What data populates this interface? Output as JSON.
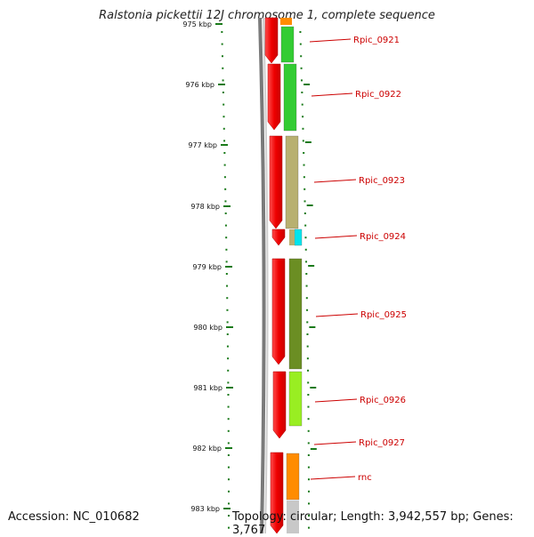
{
  "title": "Ralstonia pickettii 12J chromosome 1, complete sequence",
  "footer": {
    "accession": "Accession: NC_010682",
    "topology": "Topology: circular; Length: 3,942,557 bp; Genes: 3,767"
  },
  "ticks": [
    "975 kbp",
    "976 kbp",
    "977 kbp",
    "978 kbp",
    "979 kbp",
    "980 kbp",
    "981 kbp",
    "982 kbp",
    "983 kbp"
  ],
  "genes": [
    {
      "name": "Rpic_0921",
      "cds_color": "#33cc33"
    },
    {
      "name": "Rpic_0922",
      "cds_color": "#33cc33"
    },
    {
      "name": "Rpic_0923",
      "cds_color": "#b8b070"
    },
    {
      "name": "Rpic_0924",
      "cds_color": "#00e5ee"
    },
    {
      "name": "Rpic_0925",
      "cds_color": "#6b8e23"
    },
    {
      "name": "Rpic_0926",
      "cds_color": "#99ee22"
    },
    {
      "name": "Rpic_0927",
      "cds_color": ""
    },
    {
      "name": "rnc",
      "cds_color": "#ff8c00"
    }
  ],
  "colors": {
    "gene_arrow": "#ff1a1a",
    "tick": "#1a7a1a",
    "backbone": "#777777",
    "label_line": "#cc0000"
  }
}
